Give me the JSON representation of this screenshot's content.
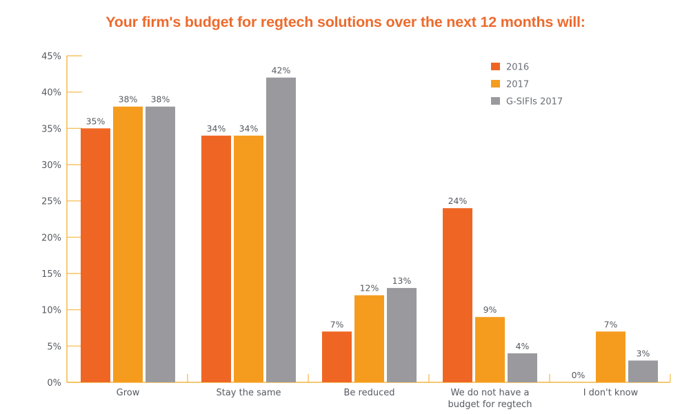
{
  "chart_data": {
    "type": "bar",
    "title": "Your firm's budget for regtech solutions over the next 12 months will:",
    "xlabel": "",
    "ylabel": "",
    "ylim": [
      0,
      45
    ],
    "yticks": [
      0,
      5,
      10,
      15,
      20,
      25,
      30,
      35,
      40,
      45
    ],
    "ytick_labels": [
      "0%",
      "5%",
      "10%",
      "15%",
      "20%",
      "25%",
      "30%",
      "35%",
      "40%",
      "45%"
    ],
    "grid": false,
    "legend_position": "top-right",
    "categories": [
      "Grow",
      "Stay the same",
      "Be reduced",
      "We do not have a budget for regtech",
      "I don't know"
    ],
    "category_label_lines": [
      [
        "Grow"
      ],
      [
        "Stay the same"
      ],
      [
        "Be reduced"
      ],
      [
        "We do not have a",
        "budget for regtech"
      ],
      [
        "I don't know"
      ]
    ],
    "series": [
      {
        "name": "2016",
        "color": "#ef6624",
        "values": [
          35,
          34,
          7,
          24,
          0
        ],
        "labels": [
          "35%",
          "34%",
          "7%",
          "24%",
          "0%"
        ]
      },
      {
        "name": "2017",
        "color": "#f59c1f",
        "values": [
          38,
          34,
          12,
          9,
          7
        ],
        "labels": [
          "38%",
          "34%",
          "12%",
          "9%",
          "7%"
        ]
      },
      {
        "name": "G-SIFIs 2017",
        "color": "#9a9a9e",
        "values": [
          38,
          42,
          13,
          4,
          3
        ],
        "labels": [
          "38%",
          "42%",
          "13%",
          "4%",
          "3%"
        ]
      }
    ],
    "axis_color": "#f2b640"
  }
}
